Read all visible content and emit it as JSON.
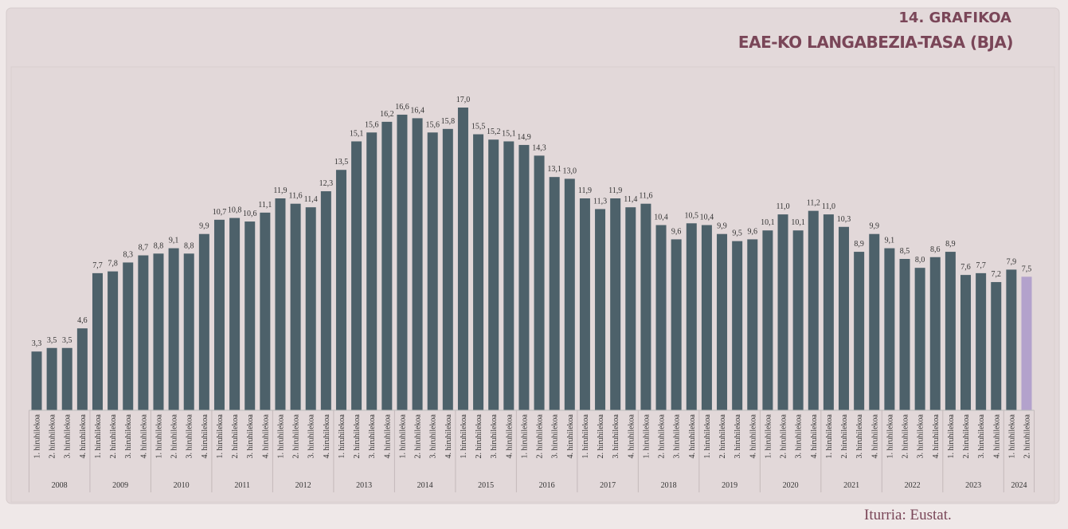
{
  "chart_data": {
    "type": "bar",
    "title": "14. GRAFIKOA",
    "subtitle": "EAE-KO LANGABEZIA-TASA (BJA)",
    "source": "Iturria: Eustat.",
    "categories": [
      "1. hiruhilekoa",
      "2. hiruhilekoa",
      "3. hiruhilekoa",
      "4. hiruhilekoa",
      "1. hiruhilekoa",
      "2. hiruhilekoa",
      "3. hiruhilekoa",
      "4. hiruhilekoa",
      "1. hiruhilekoa",
      "2. hiruhilekoa",
      "3. hiruhilekoa",
      "4. hiruhilekoa",
      "1. hiruhilekoa",
      "2. hiruhilekoa",
      "3. hiruhilekoa",
      "4. hiruhilekoa",
      "1. hiruhilekoa",
      "2. hiruhilekoa",
      "3. hiruhilekoa",
      "4. hiruhilekoa",
      "1. hiruhilekoa",
      "2. hiruhilekoa",
      "3. hiruhilekoa",
      "4. hiruhilekoa",
      "1. hiruhilekoa",
      "2. hiruhilekoa",
      "3. hiruhilekoa",
      "4. hiruhilekoa",
      "1. hiruhilekoa",
      "2. hiruhilekoa",
      "3. hiruhilekoa",
      "4. hiruhilekoa",
      "1. hiruhilekoa",
      "2. hiruhilekoa",
      "3. hiruhilekoa",
      "4. hiruhilekoa",
      "1. hiruhilekoa",
      "2. hiruhilekoa",
      "3. hiruhilekoa",
      "4. hiruhilekoa",
      "1. hiruhilekoa",
      "2. hiruhilekoa",
      "3. hiruhilekoa",
      "4. hiruhilekoa",
      "1. hiruhilekoa",
      "2. hiruhilekoa",
      "3. hiruhilekoa",
      "4. hiruhilekoa",
      "1. hiruhilekoa",
      "2. hiruhilekoa",
      "3. hiruhilekoa",
      "4. hiruhilekoa",
      "1. hiruhilekoa",
      "2. hiruhilekoa",
      "3. hiruhilekoa",
      "4. hiruhilekoa",
      "1. hiruhilekoa",
      "2. hiruhilekoa",
      "3. hiruhilekoa",
      "4. hiruhilekoa",
      "1. hiruhilekoa",
      "2. hiruhilekoa",
      "3. hiruhilekoa",
      "4. hiruhilekoa",
      "1. hiruhilekoa",
      "2. hiruhilekoa"
    ],
    "years": [
      "2008",
      "2009",
      "2010",
      "2011",
      "2012",
      "2013",
      "2014",
      "2015",
      "2016",
      "2017",
      "2018",
      "2019",
      "2020",
      "2021",
      "2022",
      "2023",
      "2024"
    ],
    "values": [
      3.3,
      3.5,
      3.5,
      4.6,
      7.7,
      7.8,
      8.3,
      8.7,
      8.8,
      9.1,
      8.8,
      9.9,
      10.7,
      10.8,
      10.6,
      11.1,
      11.9,
      11.6,
      11.4,
      12.3,
      13.5,
      15.1,
      15.6,
      16.2,
      16.6,
      16.4,
      15.6,
      15.8,
      17.0,
      15.5,
      15.2,
      15.1,
      14.9,
      14.3,
      13.1,
      13.0,
      11.9,
      11.3,
      11.9,
      11.4,
      11.6,
      10.4,
      9.6,
      10.5,
      10.4,
      9.9,
      9.5,
      9.6,
      10.1,
      11.0,
      10.1,
      11.2,
      11.0,
      10.3,
      8.9,
      9.9,
      9.1,
      8.5,
      8.0,
      8.6,
      8.9,
      7.6,
      7.7,
      7.2,
      7.9,
      7.5
    ],
    "value_labels": [
      "3,3",
      "3,5",
      "3,5",
      "4,6",
      "7,7",
      "7,8",
      "8,3",
      "8,7",
      "8,8",
      "9,1",
      "8,8",
      "9,9",
      "10,7",
      "10,8",
      "10,6",
      "11,1",
      "11,9",
      "11,6",
      "11,4",
      "12,3",
      "13,5",
      "15,1",
      "15,6",
      "16,2",
      "16,6",
      "16,4",
      "15,6",
      "15,8",
      "17,0",
      "15,5",
      "15,2",
      "15,1",
      "14,9",
      "14,3",
      "13,1",
      "13,0",
      "11,9",
      "11,3",
      "11,9",
      "11,4",
      "11,6",
      "10,4",
      "9,6",
      "10,5",
      "10,4",
      "9,9",
      "9,5",
      "9,6",
      "10,1",
      "11,0",
      "10,1",
      "11,2",
      "11,0",
      "10,3",
      "8,9",
      "9,9",
      "9,1",
      "8,5",
      "8,0",
      "8,6",
      "8,9",
      "7,6",
      "7,7",
      "7,2",
      "7,9",
      "7,5"
    ],
    "colors": [
      "#4d616a",
      "#4d616a",
      "#4d616a",
      "#4d616a",
      "#4d616a",
      "#4d616a",
      "#4d616a",
      "#4d616a",
      "#4d616a",
      "#4d616a",
      "#4d616a",
      "#4d616a",
      "#4d616a",
      "#4d616a",
      "#4d616a",
      "#4d616a",
      "#4d616a",
      "#4d616a",
      "#4d616a",
      "#4d616a",
      "#4d616a",
      "#4d616a",
      "#4d616a",
      "#4d616a",
      "#4d616a",
      "#4d616a",
      "#4d616a",
      "#4d616a",
      "#4d616a",
      "#4d616a",
      "#4d616a",
      "#4d616a",
      "#4d616a",
      "#4d616a",
      "#4d616a",
      "#4d616a",
      "#4d616a",
      "#4d616a",
      "#4d616a",
      "#4d616a",
      "#4d616a",
      "#4d616a",
      "#4d616a",
      "#4d616a",
      "#4d616a",
      "#4d616a",
      "#4d616a",
      "#4d616a",
      "#4d616a",
      "#4d616a",
      "#4d616a",
      "#4d616a",
      "#4d616a",
      "#4d616a",
      "#4d616a",
      "#4d616a",
      "#4d616a",
      "#4d616a",
      "#4d616a",
      "#4d616a",
      "#4d616a",
      "#4d616a",
      "#4d616a",
      "#4d616a",
      "#4d616a",
      "#b3a2cc"
    ]
  }
}
